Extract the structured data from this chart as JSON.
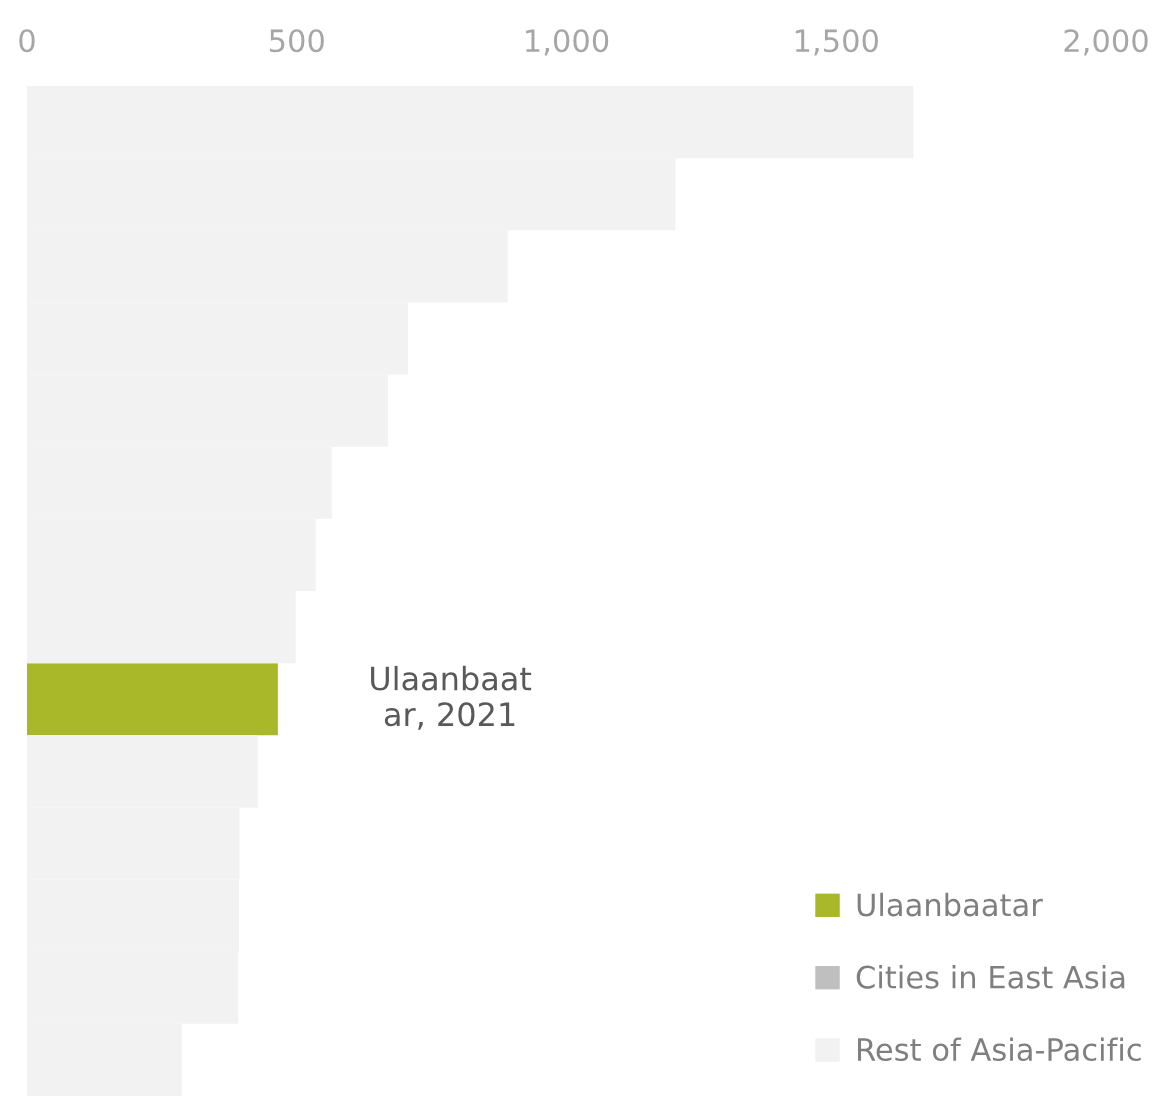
{
  "chart_data": {
    "type": "bar",
    "orientation": "horizontal",
    "stacked": true,
    "categories": [
      null,
      null,
      null,
      null,
      null,
      null,
      null,
      null,
      null,
      null,
      null,
      null,
      null,
      null
    ],
    "series": [
      {
        "name": "Ulaanbaatar",
        "color": "#a8b828",
        "values": [
          null,
          null,
          null,
          null,
          null,
          null,
          null,
          null,
          465,
          null,
          null,
          null,
          null,
          null
        ]
      },
      {
        "name": "Cities in East Asia",
        "color": "#bfbfbf",
        "values": [
          null,
          null,
          null,
          null,
          null,
          null,
          null,
          null,
          null,
          null,
          null,
          null,
          null,
          null
        ]
      },
      {
        "name": "Rest of Asia-Pacific",
        "color": "#f2f2f2",
        "values": [
          1643,
          1202,
          891,
          706,
          669,
          565,
          535,
          498,
          null,
          428,
          394,
          393,
          391,
          287
        ]
      }
    ],
    "xlim": [
      0,
      2000
    ],
    "xticks": [
      {
        "value": 0,
        "label": "0"
      },
      {
        "value": 500,
        "label": "500"
      },
      {
        "value": 1000,
        "label": "1,000"
      },
      {
        "value": 1500,
        "label": "1,500"
      },
      {
        "value": 2000,
        "label": "2,000"
      }
    ],
    "annotations": [
      {
        "text": "Ulaanbaat\nar, 2021",
        "x": 465
      }
    ],
    "grid": false,
    "legend": "bottom right"
  }
}
